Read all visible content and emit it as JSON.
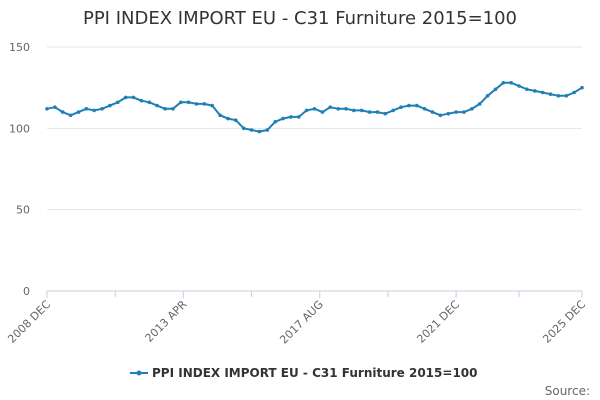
{
  "chart_data": {
    "type": "line",
    "title": "PPI INDEX IMPORT EU - C31 Furniture 2015=100",
    "xlabel": "",
    "ylabel": "",
    "x_ticks": [
      "2008 DEC",
      "2013 APR",
      "2017 AUG",
      "2021 DEC",
      "2025 DEC"
    ],
    "x_range": [
      "2008-12",
      "2025-12"
    ],
    "ylim": [
      0,
      150
    ],
    "y_ticks": [
      0,
      50,
      100,
      150
    ],
    "grid": true,
    "legend_position": "bottom",
    "series": [
      {
        "name": "PPI INDEX IMPORT EU - C31 Furniture 2015=100",
        "color": "#1f7fb6",
        "x": [
          "2008-12",
          "2009-03",
          "2009-06",
          "2009-09",
          "2009-12",
          "2010-03",
          "2010-06",
          "2010-09",
          "2010-12",
          "2011-03",
          "2011-06",
          "2011-09",
          "2011-12",
          "2012-03",
          "2012-06",
          "2012-09",
          "2012-12",
          "2013-03",
          "2013-06",
          "2013-09",
          "2013-12",
          "2014-03",
          "2014-06",
          "2014-09",
          "2014-12",
          "2015-03",
          "2015-06",
          "2015-09",
          "2015-12",
          "2016-03",
          "2016-06",
          "2016-09",
          "2016-12",
          "2017-03",
          "2017-06",
          "2017-09",
          "2017-12",
          "2018-03",
          "2018-06",
          "2018-09",
          "2018-12",
          "2019-03",
          "2019-06",
          "2019-09",
          "2019-12",
          "2020-03",
          "2020-06",
          "2020-09",
          "2020-12",
          "2021-03",
          "2021-06",
          "2021-09",
          "2021-12",
          "2022-03",
          "2022-06",
          "2022-09",
          "2022-12",
          "2023-03",
          "2023-06",
          "2023-09",
          "2023-12",
          "2024-03",
          "2024-06",
          "2024-09",
          "2024-12",
          "2025-03",
          "2025-06",
          "2025-09",
          "2025-12"
        ],
        "y": [
          112,
          113,
          110,
          108,
          110,
          112,
          111,
          112,
          114,
          116,
          119,
          119,
          117,
          116,
          114,
          112,
          112,
          116,
          116,
          115,
          115,
          114,
          108,
          106,
          105,
          100,
          99,
          98,
          99,
          104,
          106,
          107,
          107,
          111,
          112,
          110,
          113,
          112,
          112,
          111,
          111,
          110,
          110,
          109,
          111,
          113,
          114,
          114,
          112,
          110,
          108,
          109,
          110,
          110,
          112,
          115,
          120,
          124,
          128,
          128,
          126,
          124,
          123,
          122,
          121,
          120,
          120,
          122,
          125
        ]
      }
    ],
    "source_label": "Source:"
  }
}
